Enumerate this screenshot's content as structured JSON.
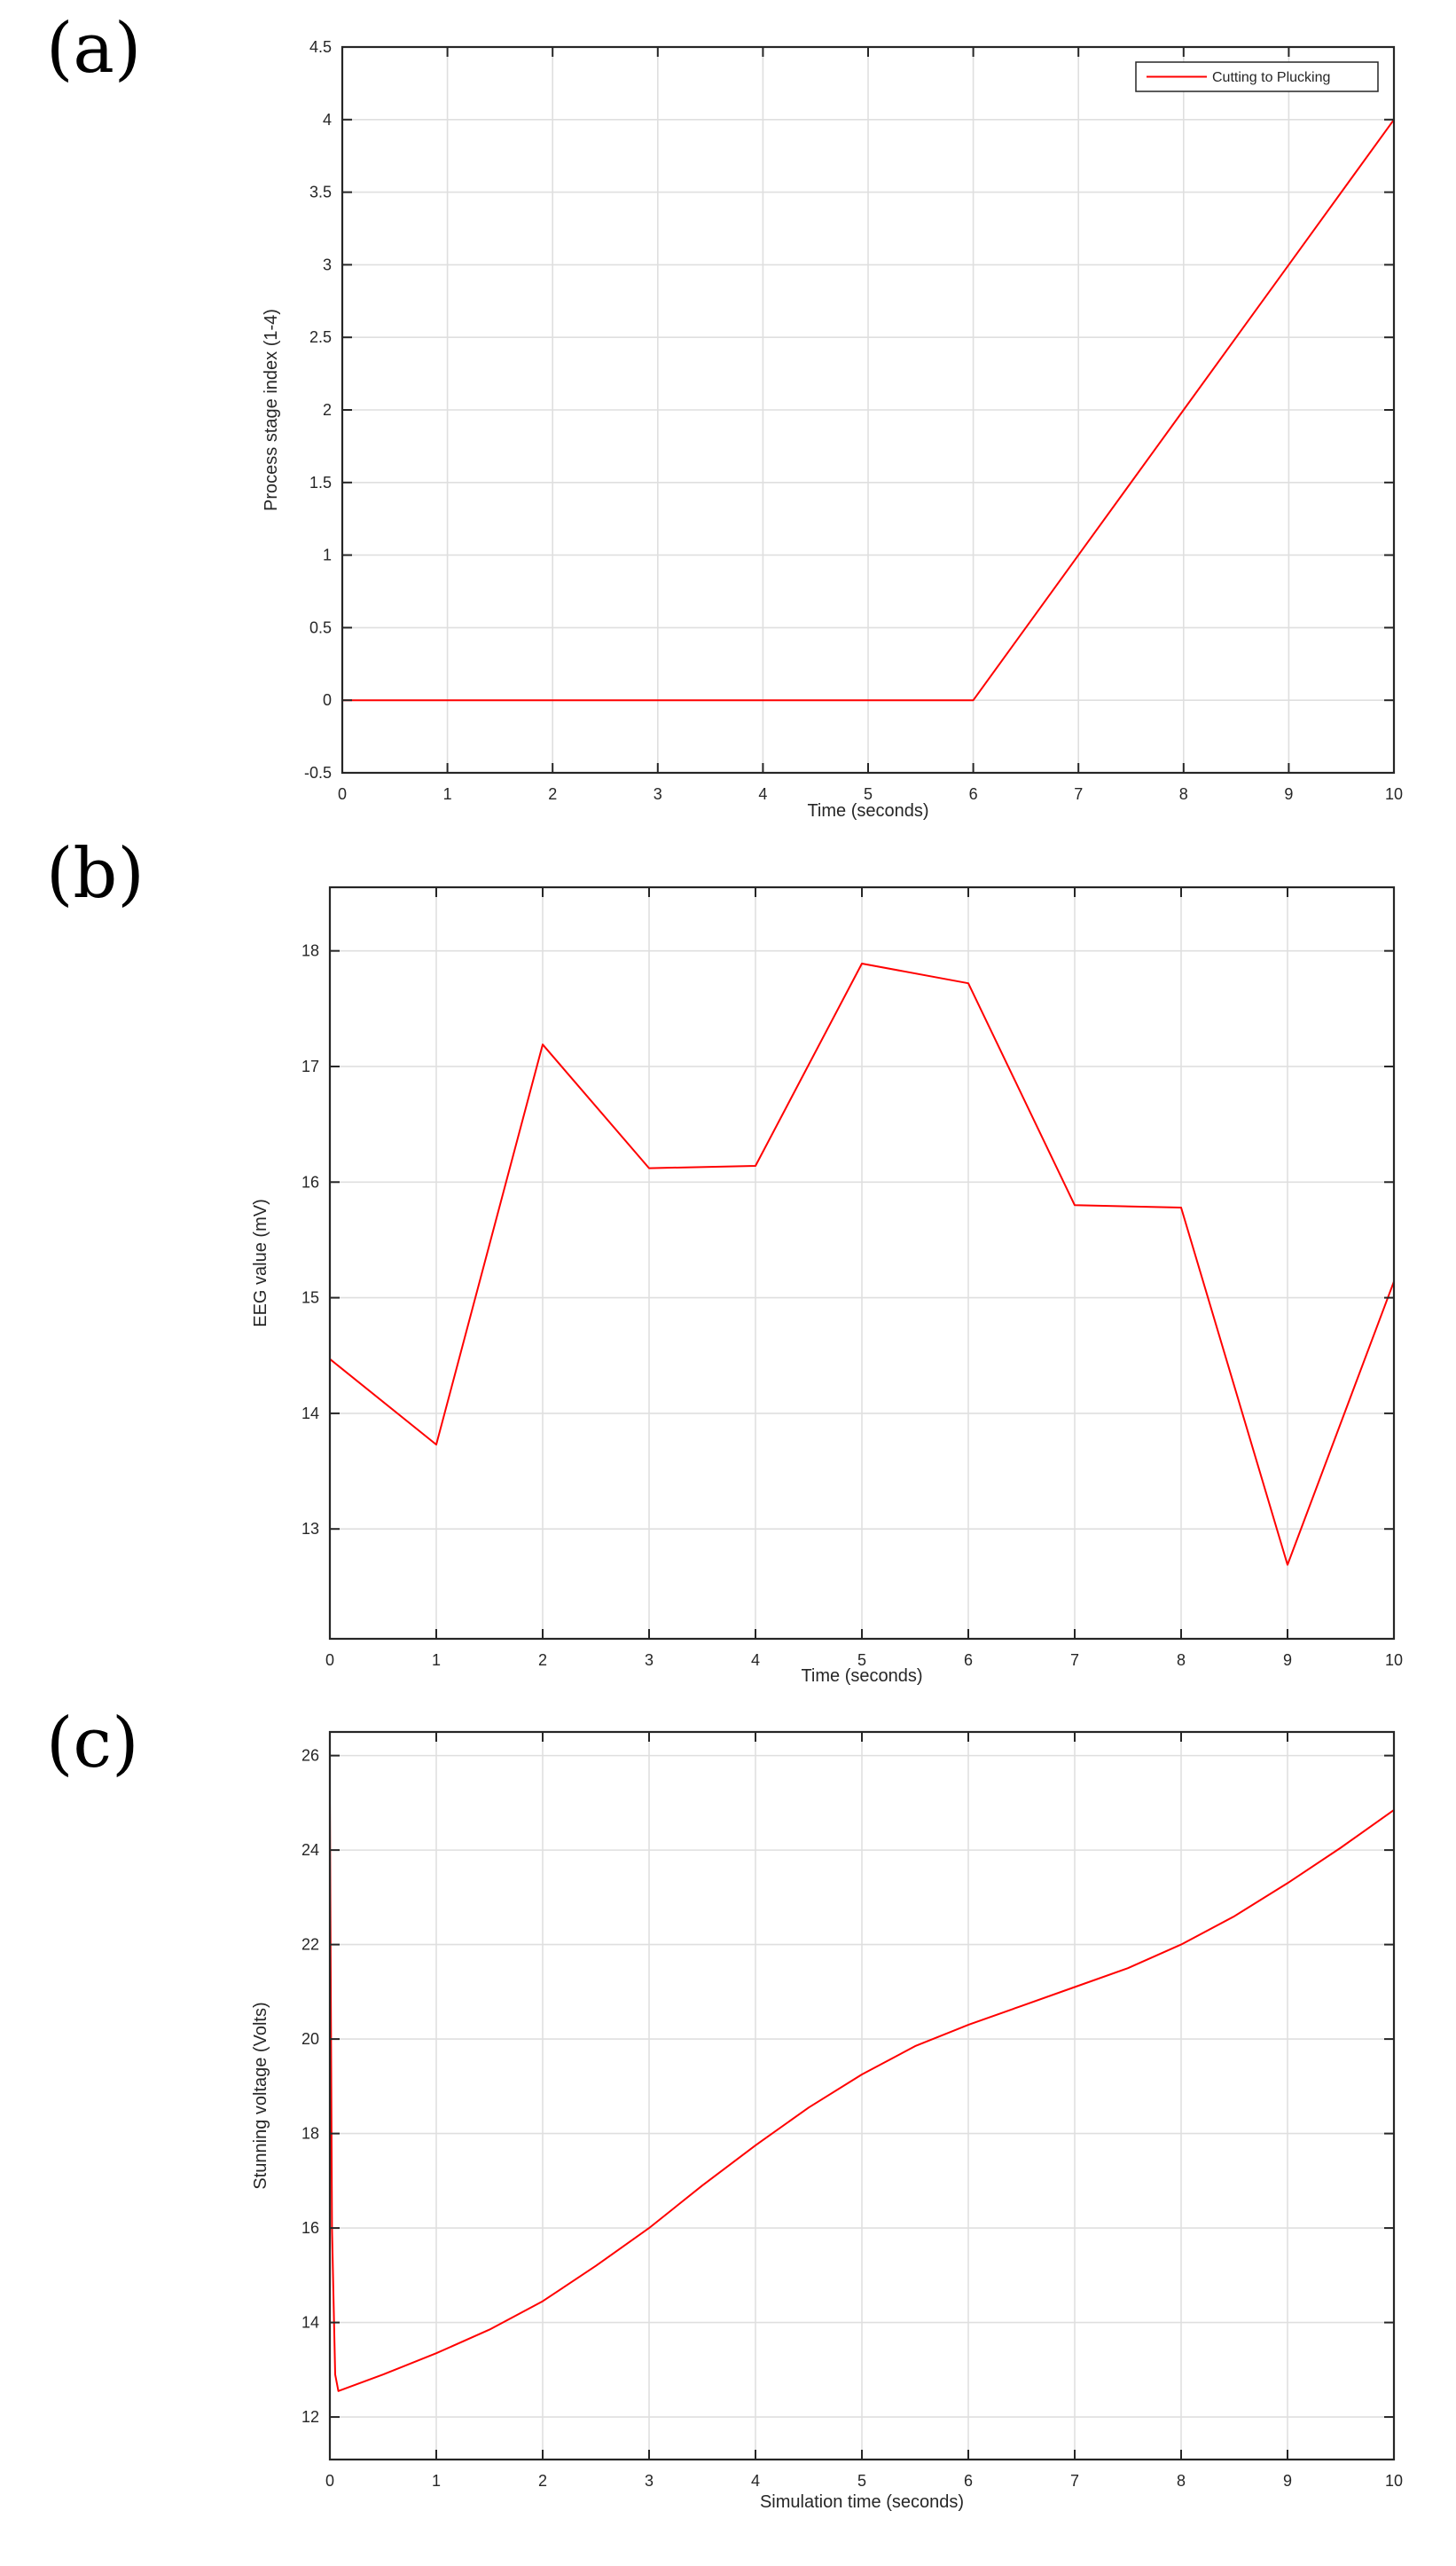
{
  "panels": [
    {
      "label": "(a)"
    },
    {
      "label": "(b)"
    },
    {
      "label": "(c)"
    }
  ],
  "colors": {
    "line": "#ff0000",
    "grid": "#dfdfdf",
    "axis": "#262626"
  },
  "chart_data": [
    {
      "type": "line",
      "title": "",
      "xlabel": "Time (seconds)",
      "ylabel": "Process stage index (1-4)",
      "xlim": [
        0,
        10
      ],
      "ylim": [
        -0.5,
        4.5
      ],
      "xticks": [
        0,
        1,
        2,
        3,
        4,
        5,
        6,
        7,
        8,
        9,
        10
      ],
      "yticks": [
        -0.5,
        0,
        0.5,
        1,
        1.5,
        2,
        2.5,
        3,
        3.5,
        4,
        4.5
      ],
      "grid": true,
      "legend_position": "top-right",
      "series": [
        {
          "name": "Cutting to Plucking",
          "color": "#ff0000",
          "x": [
            0,
            1,
            2,
            3,
            4,
            5,
            6,
            7,
            8,
            9,
            10
          ],
          "y": [
            0,
            0,
            0,
            0,
            0,
            0,
            0,
            1,
            2,
            3,
            4
          ]
        }
      ]
    },
    {
      "type": "line",
      "title": "",
      "xlabel": "Time (seconds)",
      "ylabel": "EEG value (mV)",
      "xlim": [
        0,
        10
      ],
      "ylim": [
        12.05,
        18.55
      ],
      "xticks": [
        0,
        1,
        2,
        3,
        4,
        5,
        6,
        7,
        8,
        9,
        10
      ],
      "yticks": [
        13,
        14,
        15,
        16,
        17,
        18
      ],
      "grid": true,
      "series": [
        {
          "name": "EEG",
          "color": "#ff0000",
          "x": [
            0,
            1,
            2,
            3,
            4,
            5,
            6,
            7,
            8,
            9,
            10
          ],
          "y": [
            14.47,
            13.73,
            17.19,
            16.12,
            16.14,
            17.89,
            17.72,
            15.8,
            15.78,
            12.69,
            15.14
          ]
        }
      ]
    },
    {
      "type": "line",
      "title": "",
      "xlabel": "Simulation time (seconds)",
      "ylabel": "Stunning voltage (Volts)",
      "xlim": [
        0,
        10
      ],
      "ylim": [
        11.1,
        26.5
      ],
      "xticks": [
        0,
        1,
        2,
        3,
        4,
        5,
        6,
        7,
        8,
        9,
        10
      ],
      "yticks": [
        12,
        14,
        16,
        18,
        20,
        22,
        24,
        26
      ],
      "grid": true,
      "series": [
        {
          "name": "Stunning voltage",
          "color": "#ff0000",
          "x": [
            0,
            0.02,
            0.05,
            0.08,
            0.5,
            1,
            1.5,
            2,
            2.5,
            3,
            3.5,
            4,
            4.5,
            5,
            5.5,
            6,
            6.5,
            7,
            7.5,
            8,
            8.5,
            9,
            9.5,
            10
          ],
          "y": [
            25.0,
            16.0,
            12.9,
            12.55,
            12.9,
            13.35,
            13.85,
            14.45,
            15.2,
            16.0,
            16.9,
            17.75,
            18.55,
            19.25,
            19.85,
            20.3,
            20.7,
            21.1,
            21.5,
            22.0,
            22.6,
            23.3,
            24.05,
            24.85
          ]
        }
      ]
    }
  ]
}
